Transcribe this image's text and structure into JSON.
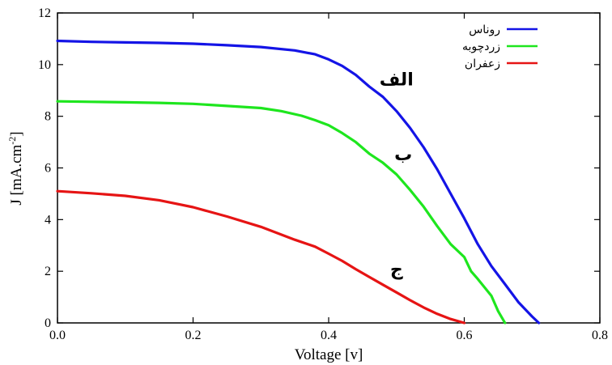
{
  "chart_data": {
    "type": "line",
    "xlabel": "Voltage [v]",
    "ylabel": "J [mA.cm",
    "ylabel_sup": "-2",
    "ylabel_close": "]",
    "xlim": [
      0,
      0.8
    ],
    "ylim": [
      0,
      12
    ],
    "x_ticks": [
      0.0,
      0.2,
      0.4,
      0.6,
      0.8
    ],
    "x_tick_labels": [
      "0.0",
      "0.2",
      "0.4",
      "0.6",
      "0.8"
    ],
    "y_ticks": [
      0,
      2,
      4,
      6,
      8,
      10,
      12
    ],
    "y_tick_labels": [
      "0",
      "2",
      "4",
      "6",
      "8",
      "10",
      "12"
    ],
    "grid": false,
    "legend_position": "top-right",
    "series": [
      {
        "name": "روناس",
        "color": "#1414e6",
        "annotation": "الف",
        "annotation_at": [
          0.5,
          9.2
        ],
        "x": [
          0.0,
          0.05,
          0.1,
          0.15,
          0.2,
          0.25,
          0.3,
          0.35,
          0.38,
          0.4,
          0.42,
          0.44,
          0.46,
          0.48,
          0.5,
          0.52,
          0.54,
          0.56,
          0.58,
          0.6,
          0.62,
          0.64,
          0.66,
          0.68,
          0.7,
          0.71
        ],
        "y": [
          10.92,
          10.88,
          10.86,
          10.84,
          10.81,
          10.75,
          10.68,
          10.55,
          10.4,
          10.2,
          9.95,
          9.6,
          9.15,
          8.75,
          8.2,
          7.55,
          6.8,
          5.95,
          5.0,
          4.05,
          3.05,
          2.2,
          1.5,
          0.8,
          0.25,
          0.0
        ]
      },
      {
        "name": "زردچوبه",
        "color": "#1ee61e",
        "annotation": "ب",
        "annotation_at": [
          0.51,
          6.3
        ],
        "x": [
          0.0,
          0.05,
          0.1,
          0.15,
          0.2,
          0.25,
          0.3,
          0.33,
          0.36,
          0.38,
          0.4,
          0.42,
          0.44,
          0.46,
          0.48,
          0.5,
          0.52,
          0.54,
          0.56,
          0.58,
          0.6,
          0.61,
          0.62,
          0.64,
          0.65,
          0.66
        ],
        "y": [
          8.58,
          8.56,
          8.54,
          8.52,
          8.48,
          8.4,
          8.32,
          8.2,
          8.02,
          7.85,
          7.65,
          7.35,
          7.0,
          6.55,
          6.2,
          5.75,
          5.15,
          4.5,
          3.75,
          3.05,
          2.55,
          2.0,
          1.7,
          1.05,
          0.45,
          0.0
        ]
      },
      {
        "name": "زعفران",
        "color": "#e61414",
        "annotation": "ج",
        "annotation_at": [
          0.5,
          1.85
        ],
        "x": [
          0.0,
          0.05,
          0.1,
          0.15,
          0.2,
          0.25,
          0.3,
          0.35,
          0.38,
          0.4,
          0.42,
          0.44,
          0.46,
          0.48,
          0.5,
          0.52,
          0.54,
          0.56,
          0.58,
          0.6
        ],
        "y": [
          5.1,
          5.02,
          4.92,
          4.75,
          4.48,
          4.12,
          3.72,
          3.22,
          2.95,
          2.68,
          2.4,
          2.08,
          1.78,
          1.48,
          1.18,
          0.88,
          0.6,
          0.35,
          0.15,
          0.0
        ]
      }
    ]
  }
}
